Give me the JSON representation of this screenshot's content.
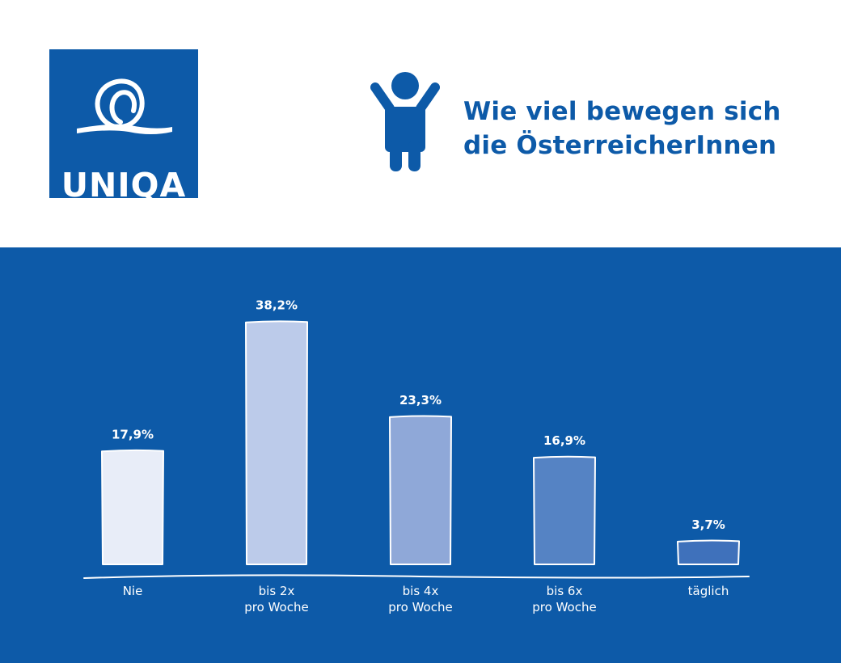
{
  "logo": {
    "text": "UNIQA"
  },
  "header": {
    "title_line1": "Wie viel bewegen sich",
    "title_line2": "die ÖsterreicherInnen"
  },
  "colors": {
    "brand_blue": "#0d5aa8",
    "bar_colors": [
      "#e8edf8",
      "#bccbea",
      "#8fa8d8",
      "#5583c4",
      "#3f71bb"
    ]
  },
  "chart_data": {
    "type": "bar",
    "title": "Wie viel bewegen sich die ÖsterreicherInnen",
    "categories": [
      [
        "Nie"
      ],
      [
        "bis 2x",
        "pro Woche"
      ],
      [
        "bis 4x",
        "pro Woche"
      ],
      [
        "bis 6x",
        "pro Woche"
      ],
      [
        "täglich"
      ]
    ],
    "values": [
      17.9,
      38.2,
      23.3,
      16.9,
      3.7
    ],
    "value_labels": [
      "17,9%",
      "38,2%",
      "23,3%",
      "16,9%",
      "3,7%"
    ],
    "unit": "%",
    "ylim": [
      0,
      40
    ],
    "grid": false,
    "xlabel": "",
    "ylabel": ""
  }
}
